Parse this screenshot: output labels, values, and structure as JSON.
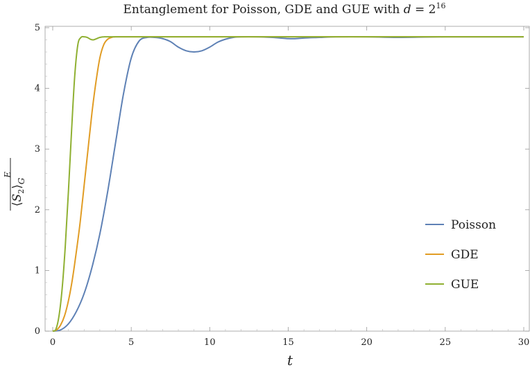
{
  "chart_data": {
    "type": "line",
    "title": "Entanglement for Poisson, GDE and GUE with d = 2^16",
    "title_parts": {
      "prefix": "Entanglement for Poisson, GDE and GUE with ",
      "var": "d",
      "eq": " = 2",
      "exp": "16"
    },
    "xlabel": "t",
    "ylabel": "⟨S2⟩G E (overlined)",
    "ylabel_parts": {
      "open": "⟨",
      "var": "S",
      "sub": "2",
      "close": "⟩",
      "subscript": "G",
      "superscript": "E"
    },
    "xlim": [
      0,
      30
    ],
    "ylim": [
      0,
      5
    ],
    "x_ticks": [
      0,
      5,
      10,
      15,
      20,
      25,
      30
    ],
    "y_ticks": [
      0,
      1,
      2,
      3,
      4,
      5
    ],
    "grid": false,
    "legend_position": "right",
    "series": [
      {
        "name": "Poisson",
        "color": "#5E81B5",
        "points": [
          [
            0,
            0
          ],
          [
            0.5,
            0.02
          ],
          [
            1,
            0.12
          ],
          [
            1.5,
            0.32
          ],
          [
            2,
            0.62
          ],
          [
            2.5,
            1.05
          ],
          [
            3,
            1.6
          ],
          [
            3.5,
            2.3
          ],
          [
            4,
            3.1
          ],
          [
            4.5,
            3.9
          ],
          [
            5,
            4.5
          ],
          [
            5.5,
            4.78
          ],
          [
            6,
            4.84
          ],
          [
            6.5,
            4.84
          ],
          [
            7,
            4.82
          ],
          [
            7.5,
            4.77
          ],
          [
            8,
            4.68
          ],
          [
            8.5,
            4.62
          ],
          [
            9,
            4.6
          ],
          [
            9.5,
            4.62
          ],
          [
            10,
            4.68
          ],
          [
            10.5,
            4.76
          ],
          [
            11,
            4.81
          ],
          [
            11.5,
            4.84
          ],
          [
            12,
            4.85
          ],
          [
            13,
            4.85
          ],
          [
            14,
            4.84
          ],
          [
            15,
            4.82
          ],
          [
            15.5,
            4.82
          ],
          [
            16,
            4.83
          ],
          [
            17,
            4.84
          ],
          [
            18,
            4.85
          ],
          [
            20,
            4.85
          ],
          [
            22,
            4.84
          ],
          [
            25,
            4.85
          ],
          [
            30,
            4.85
          ]
        ]
      },
      {
        "name": "GDE",
        "color": "#E19C24",
        "points": [
          [
            0,
            0
          ],
          [
            0.25,
            0.02
          ],
          [
            0.5,
            0.1
          ],
          [
            0.75,
            0.25
          ],
          [
            1,
            0.5
          ],
          [
            1.25,
            0.85
          ],
          [
            1.5,
            1.3
          ],
          [
            1.75,
            1.8
          ],
          [
            2,
            2.4
          ],
          [
            2.25,
            3.0
          ],
          [
            2.5,
            3.6
          ],
          [
            2.75,
            4.1
          ],
          [
            3,
            4.5
          ],
          [
            3.25,
            4.72
          ],
          [
            3.5,
            4.81
          ],
          [
            3.75,
            4.84
          ],
          [
            4,
            4.85
          ],
          [
            5,
            4.85
          ],
          [
            10,
            4.85
          ],
          [
            20,
            4.85
          ],
          [
            30,
            4.85
          ]
        ]
      },
      {
        "name": "GUE",
        "color": "#8FB032",
        "points": [
          [
            0,
            0
          ],
          [
            0.2,
            0.03
          ],
          [
            0.4,
            0.25
          ],
          [
            0.6,
            0.7
          ],
          [
            0.8,
            1.4
          ],
          [
            1,
            2.3
          ],
          [
            1.2,
            3.3
          ],
          [
            1.4,
            4.2
          ],
          [
            1.6,
            4.72
          ],
          [
            1.8,
            4.84
          ],
          [
            2.0,
            4.85
          ],
          [
            2.2,
            4.84
          ],
          [
            2.4,
            4.81
          ],
          [
            2.6,
            4.8
          ],
          [
            2.8,
            4.82
          ],
          [
            3.0,
            4.84
          ],
          [
            3.3,
            4.85
          ],
          [
            4,
            4.85
          ],
          [
            10,
            4.85
          ],
          [
            20,
            4.85
          ],
          [
            30,
            4.85
          ]
        ]
      }
    ]
  }
}
